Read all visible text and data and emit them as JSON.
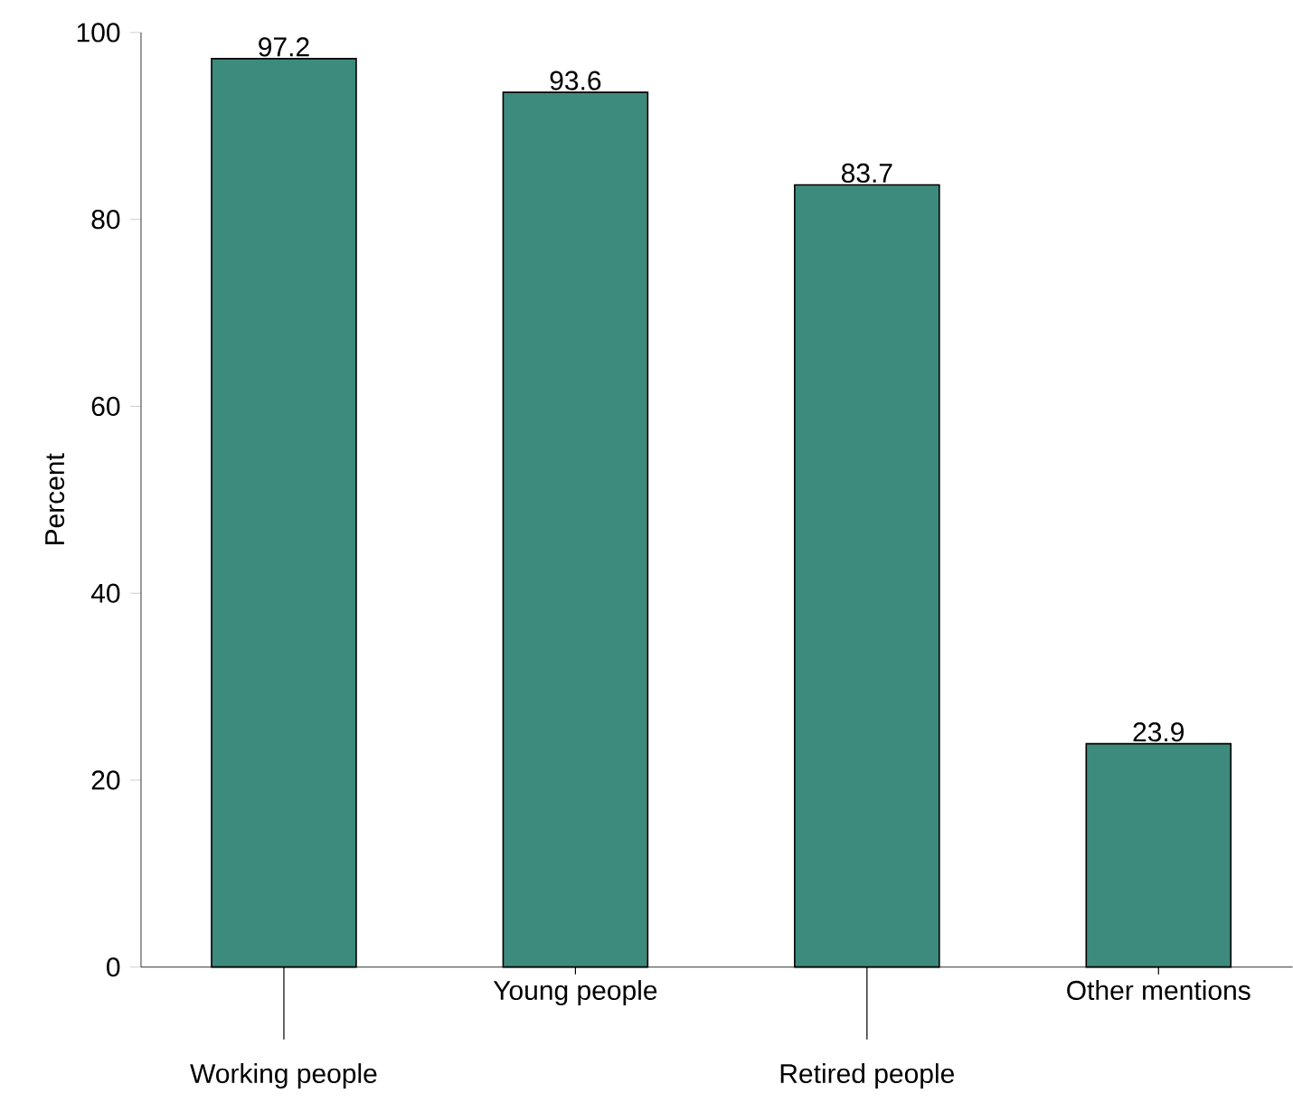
{
  "chart_data": {
    "type": "bar",
    "ylabel": "Percent",
    "categories": [
      "Working people",
      "Young people",
      "Retired people",
      "Other mentions"
    ],
    "values": [
      97.2,
      93.6,
      83.7,
      23.9
    ],
    "color": "#3d8b7d",
    "ylim": [
      0,
      100
    ],
    "yticks": [
      0,
      20,
      40,
      60,
      80,
      100
    ],
    "data_labels": true,
    "grid": false
  }
}
